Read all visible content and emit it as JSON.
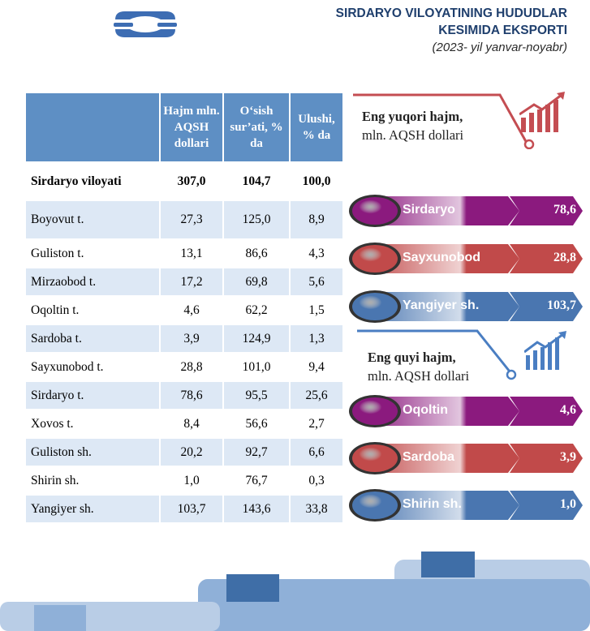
{
  "header": {
    "title_line1": "SIRDARYO VILOYATINING HUDUDLAR",
    "title_line2": "KESIMIDA EKSPORTI",
    "subtitle": "(2023- yil yanvar-noyabr)"
  },
  "table": {
    "headers": [
      "",
      "Hajm mln. AQSH dollari",
      "O‘sish sur’ati, % da",
      "Ulushi, % da"
    ],
    "total": {
      "name": "Sirdaryo viloyati",
      "hajm": "307,0",
      "osish": "104,7",
      "ulushi": "100,0"
    },
    "rows": [
      {
        "name": "Boyovut t.",
        "hajm": "27,3",
        "osish": "125,0",
        "ulushi": "8,9"
      },
      {
        "name": "Guliston t.",
        "hajm": "13,1",
        "osish": "86,6",
        "ulushi": "4,3"
      },
      {
        "name": "Mirzaobod t.",
        "hajm": "17,2",
        "osish": "69,8",
        "ulushi": "5,6"
      },
      {
        "name": "Oqoltin t.",
        "hajm": "4,6",
        "osish": "62,2",
        "ulushi": "1,5"
      },
      {
        "name": "Sardoba t.",
        "hajm": "3,9",
        "osish": "124,9",
        "ulushi": "1,3"
      },
      {
        "name": "Sayxunobod t.",
        "hajm": "28,8",
        "osish": "101,0",
        "ulushi": "9,4"
      },
      {
        "name": "Sirdaryo t.",
        "hajm": "78,6",
        "osish": "95,5",
        "ulushi": "25,6"
      },
      {
        "name": "Xovos t.",
        "hajm": "8,4",
        "osish": "56,6",
        "ulushi": "2,7"
      },
      {
        "name": "Guliston sh.",
        "hajm": "20,2",
        "osish": "92,7",
        "ulushi": "6,6"
      },
      {
        "name": "Shirin sh.",
        "hajm": "1,0",
        "osish": "76,7",
        "ulushi": "0,3"
      },
      {
        "name": "Yangiyer sh.",
        "hajm": "103,7",
        "osish": "143,6",
        "ulushi": "33,8"
      }
    ]
  },
  "top": {
    "title_bold": "Eng yuqori hajm,",
    "title_rest": "mln. AQSH dollari",
    "items": [
      {
        "label": "Sirdaryo",
        "value": "78,6",
        "color": "#8b1a7e"
      },
      {
        "label": "Sayxunobod",
        "value": "28,8",
        "color": "#c14a4a"
      },
      {
        "label": "Yangiyer sh.",
        "value": "103,7",
        "color": "#4a76b0"
      }
    ]
  },
  "bottom": {
    "title_bold": "Eng quyi hajm,",
    "title_rest": "mln. AQSH dollari",
    "items": [
      {
        "label": "Oqoltin",
        "value": "4,6",
        "color": "#8b1a7e"
      },
      {
        "label": "Sardoba",
        "value": "3,9",
        "color": "#c14a4a"
      },
      {
        "label": "Shirin sh.",
        "value": "1,0",
        "color": "#4a76b0"
      }
    ]
  },
  "chart_data": {
    "type": "table",
    "title": "SIRDARYO VILOYATINING HUDUDLAR KESIMIDA EKSPORTI",
    "subtitle": "(2023- yil yanvar-noyabr)",
    "columns": [
      "Hajm mln. AQSH dollari",
      "O‘sish sur’ati, % da",
      "Ulushi, % da"
    ],
    "categories": [
      "Sirdaryo viloyati",
      "Boyovut t.",
      "Guliston t.",
      "Mirzaobod t.",
      "Oqoltin t.",
      "Sardoba t.",
      "Sayxunobod t.",
      "Sirdaryo t.",
      "Xovos t.",
      "Guliston sh.",
      "Shirin sh.",
      "Yangiyer sh."
    ],
    "series": [
      {
        "name": "Hajm mln. AQSH dollari",
        "values": [
          307.0,
          27.3,
          13.1,
          17.2,
          4.6,
          3.9,
          28.8,
          78.6,
          8.4,
          20.2,
          1.0,
          103.7
        ]
      },
      {
        "name": "O‘sish sur’ati, % da",
        "values": [
          104.7,
          125.0,
          86.6,
          69.8,
          62.2,
          124.9,
          101.0,
          95.5,
          56.6,
          92.7,
          76.7,
          143.6
        ]
      },
      {
        "name": "Ulushi, % da",
        "values": [
          100.0,
          8.9,
          4.3,
          5.6,
          1.5,
          1.3,
          9.4,
          25.6,
          2.7,
          6.6,
          0.3,
          33.8
        ]
      }
    ]
  }
}
